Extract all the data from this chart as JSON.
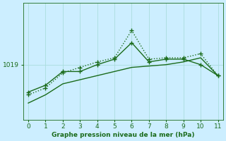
{
  "bg_color": "#cceeff",
  "grid_color": "#aadddd",
  "line1_x": [
    0,
    1,
    2,
    3,
    4,
    5,
    6,
    7,
    8,
    9,
    10,
    11
  ],
  "line1_y": [
    1017.0,
    1017.5,
    1018.5,
    1018.5,
    1019.0,
    1019.4,
    1020.6,
    1019.2,
    1019.4,
    1019.4,
    1019.0,
    1018.2
  ],
  "line2_x": [
    0,
    1,
    2,
    3,
    4,
    5,
    6,
    7,
    8,
    9,
    10,
    11
  ],
  "line2_y": [
    1016.8,
    1017.3,
    1018.4,
    1018.8,
    1019.2,
    1019.5,
    1021.5,
    1019.4,
    1019.5,
    1019.5,
    1019.8,
    1018.2
  ],
  "line3_x": [
    0,
    1,
    2,
    3,
    4,
    5,
    6,
    7,
    8,
    9,
    10,
    11
  ],
  "line3_y": [
    1016.2,
    1016.8,
    1017.6,
    1017.9,
    1018.2,
    1018.5,
    1018.8,
    1018.9,
    1019.0,
    1019.2,
    1019.5,
    1018.2
  ],
  "line_color": "#1a6b1a",
  "ytick_label": "1019",
  "ytick_value": 1019.0,
  "xlabel": "Graphe pression niveau de la mer (hPa)",
  "xlim": [
    -0.3,
    11.3
  ],
  "ylim": [
    1015.0,
    1023.5
  ],
  "xticks": [
    0,
    1,
    2,
    3,
    4,
    5,
    6,
    7,
    8,
    9,
    10,
    11
  ],
  "axis_color": "#1a6b1a",
  "xlabel_color": "#1a6b1a"
}
